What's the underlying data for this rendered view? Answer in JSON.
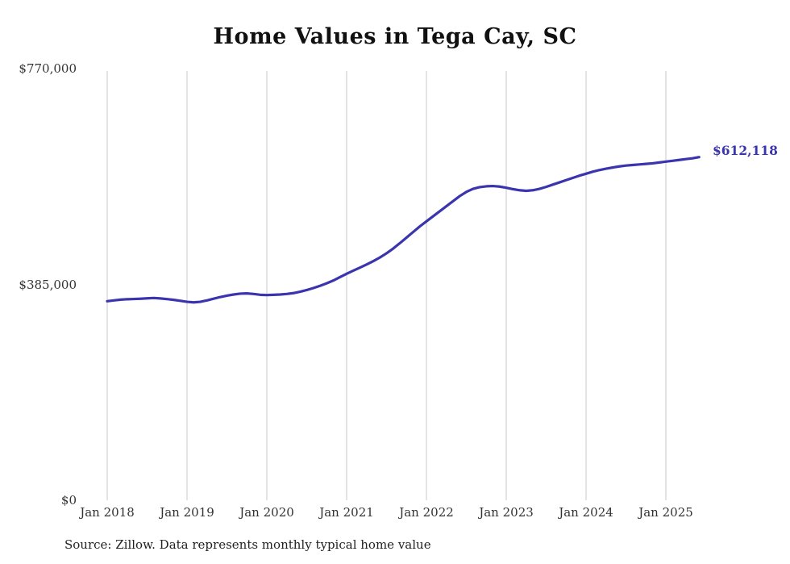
{
  "chart_data": {
    "type": "line",
    "title": "Home Values in Tega Cay, SC",
    "xlabel": "",
    "ylabel": "",
    "ylim": [
      0,
      770000
    ],
    "grid": "vertical-only",
    "legend_position": "none",
    "yticks": [
      {
        "value": 770000,
        "label": "$770,000"
      },
      {
        "value": 385000,
        "label": "$385,000"
      },
      {
        "value": 0,
        "label": "$0"
      }
    ],
    "xticks": [
      "Jan 2018",
      "Jan 2019",
      "Jan 2020",
      "Jan 2021",
      "Jan 2022",
      "Jan 2023",
      "Jan 2024",
      "Jan 2025"
    ],
    "x_start": "2018-01",
    "x_interval_months": 1,
    "x_end": "2025-06",
    "series": [
      {
        "name": "Monthly typical home value",
        "color": "#3a35ae",
        "values": [
          355000,
          356500,
          357800,
          358600,
          359000,
          359500,
          360200,
          360800,
          360000,
          358800,
          357500,
          355800,
          354000,
          353000,
          354000,
          356500,
          359500,
          362500,
          365000,
          367000,
          368500,
          369000,
          368000,
          366500,
          366000,
          366500,
          367000,
          368000,
          369500,
          372000,
          375000,
          378500,
          382500,
          387000,
          392000,
          398000,
          404000,
          409500,
          415000,
          420500,
          426500,
          433000,
          440500,
          449000,
          458500,
          468500,
          478500,
          488500,
          497500,
          506500,
          515500,
          524500,
          533500,
          542500,
          550000,
          555500,
          558500,
          560000,
          560500,
          559500,
          557500,
          555000,
          553000,
          552000,
          553000,
          555500,
          559000,
          563000,
          567000,
          571000,
          575000,
          579000,
          582500,
          586000,
          589000,
          591500,
          593500,
          595500,
          597000,
          598000,
          599000,
          600000,
          601000,
          602500,
          604000,
          605500,
          607000,
          608500,
          610000,
          612118
        ]
      }
    ],
    "end_label": "$612,118",
    "final_value": 612118,
    "source": "Source: Zillow. Data represents monthly typical home value",
    "gridline_color": "#c9c9c9"
  }
}
